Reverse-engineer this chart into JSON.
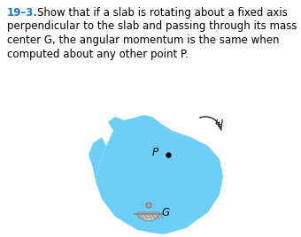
{
  "title_number": "19–3.",
  "title_number_color": "#1a7abf",
  "title_fontsize": 8.5,
  "body_color": "#000000",
  "slab_color": "#6dcff6",
  "bg_color": "#ffffff",
  "P_label": "P",
  "G_label": "G",
  "omega_label": "ω",
  "text_color": "#000000",
  "fig_width": 3.4,
  "fig_height": 2.68,
  "dpi": 100,
  "text_lines": [
    "Show that if a slab is rotating about a fixed axis",
    "perpendicular to the slab and passing through its mass",
    "center G, the angular momentum is the same when",
    "computed about any other point P."
  ]
}
